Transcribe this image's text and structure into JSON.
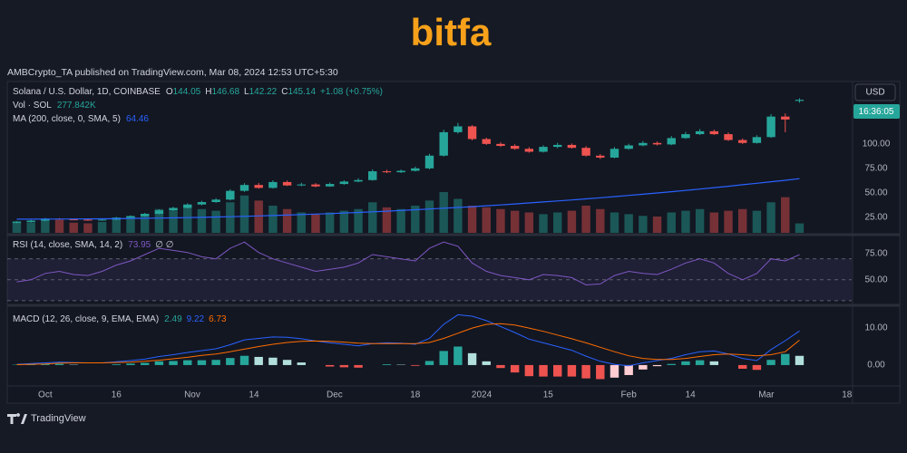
{
  "header": {
    "logo": "bitfa",
    "publisher": "AMBCrypto_TA published on TradingView.com, Mar 08, 2024 12:53 UTC+5:30"
  },
  "footer": {
    "brand": "TradingView"
  },
  "chart_data": [
    {
      "type": "candlestick",
      "title": "Solana / U.S. Dollar, 1D, COINBASE",
      "ohlc_letters": [
        "O",
        "H",
        "L",
        "C"
      ],
      "change_text": "+1.08 (+0.75%)",
      "currency": "USD",
      "countdown": "16:36:05",
      "up_color": "#26a69a",
      "down_color": "#ef5350",
      "grid": false,
      "x": [
        2,
        5,
        8,
        11,
        14,
        17,
        20,
        23,
        26,
        29,
        32,
        35,
        38,
        41,
        44,
        47,
        50,
        53,
        56,
        59,
        62,
        65,
        68,
        71,
        74,
        77,
        80,
        83,
        86,
        89,
        92,
        95,
        98,
        101,
        104,
        107,
        110,
        113,
        116,
        119,
        122,
        125,
        128,
        131,
        134,
        137,
        140,
        143,
        146,
        149,
        152,
        155,
        158,
        161,
        164,
        167
      ],
      "xlim": [
        0,
        178
      ],
      "xticks": [
        {
          "value": 8,
          "label": "Oct"
        },
        {
          "value": 23,
          "label": "16"
        },
        {
          "value": 39,
          "label": "Nov"
        },
        {
          "value": 52,
          "label": "14"
        },
        {
          "value": 69,
          "label": "Dec"
        },
        {
          "value": 86,
          "label": "18"
        },
        {
          "value": 100,
          "label": "2024"
        },
        {
          "value": 114,
          "label": "15"
        },
        {
          "value": 131,
          "label": "Feb"
        },
        {
          "value": 144,
          "label": "14"
        },
        {
          "value": 160,
          "label": "Mar"
        },
        {
          "value": 177,
          "label": "18"
        }
      ],
      "open": [
        19.5,
        20.0,
        21.5,
        23.5,
        22.8,
        22.5,
        21.8,
        22.5,
        24.5,
        26.0,
        28.5,
        32.0,
        34.5,
        38.0,
        40.5,
        43.0,
        52.0,
        58.0,
        55.0,
        61.0,
        57.5,
        58.5,
        56.5,
        59.0,
        61.5,
        63.0,
        72.0,
        71.0,
        72.5,
        75.0,
        88.0,
        112.0,
        118.0,
        105.0,
        100.0,
        98.0,
        95.0,
        92.0,
        97.0,
        99.0,
        96.0,
        88.0,
        86.0,
        95.0,
        98.5,
        101.0,
        99.5,
        106.0,
        110.0,
        113.0,
        110.0,
        104.0,
        101.0,
        107.0,
        128.0,
        144.05
      ],
      "high": [
        20.8,
        22.2,
        24.3,
        24.0,
        23.6,
        23.2,
        23.0,
        25.3,
        26.9,
        29.4,
        33.1,
        35.6,
        39.2,
        41.8,
        44.4,
        53.6,
        59.8,
        60.1,
        62.8,
        62.5,
        60.2,
        59.9,
        60.5,
        62.8,
        64.9,
        73.9,
        73.5,
        73.8,
        76.8,
        89.9,
        114.5,
        121.5,
        119.3,
        106.4,
        101.8,
        99.7,
        96.8,
        98.6,
        101.2,
        100.5,
        97.8,
        89.6,
        96.8,
        100.2,
        102.9,
        102.5,
        108.1,
        112.3,
        115.2,
        114.6,
        111.8,
        105.6,
        108.9,
        130.4,
        131.2,
        146.68
      ],
      "low": [
        19.0,
        19.5,
        21.0,
        22.3,
        22.0,
        21.3,
        21.4,
        22.0,
        24.0,
        25.5,
        28.0,
        31.4,
        34.0,
        37.2,
        39.7,
        42.2,
        51.0,
        54.2,
        54.3,
        57.0,
        56.8,
        55.7,
        56.0,
        58.2,
        60.8,
        62.4,
        70.2,
        70.3,
        71.8,
        74.0,
        87.0,
        110.5,
        103.6,
        99.0,
        96.9,
        94.0,
        91.0,
        91.2,
        95.6,
        95.2,
        87.1,
        84.6,
        85.3,
        94.1,
        97.6,
        98.5,
        98.7,
        105.2,
        109.1,
        109.2,
        103.1,
        100.0,
        100.4,
        106.2,
        112.0,
        142.22
      ],
      "close": [
        20.0,
        21.5,
        23.5,
        22.8,
        22.5,
        21.8,
        22.5,
        24.5,
        26.0,
        28.5,
        32.0,
        34.5,
        38.0,
        40.5,
        43.0,
        52.0,
        58.0,
        55.0,
        61.0,
        57.5,
        58.5,
        56.5,
        59.0,
        61.5,
        63.0,
        72.0,
        71.0,
        72.5,
        75.0,
        88.0,
        112.0,
        118.0,
        105.0,
        100.0,
        98.0,
        95.0,
        92.0,
        97.0,
        99.0,
        96.0,
        88.0,
        86.0,
        95.0,
        98.5,
        101.0,
        99.5,
        106.0,
        110.0,
        113.0,
        110.0,
        104.0,
        101.0,
        107.0,
        128.0,
        125.0,
        145.14
      ],
      "ylim": [
        9,
        162
      ],
      "yticks": [
        {
          "value": 25,
          "label": "25.00"
        },
        {
          "value": 50,
          "label": "50.00"
        },
        {
          "value": 75,
          "label": "75.00"
        },
        {
          "value": 100,
          "label": "100.00"
        }
      ],
      "series": [
        {
          "name": "Vol · SOL",
          "kind": "volume",
          "ylim": [
            0,
            4400
          ],
          "values": [
            350,
            300,
            420,
            380,
            300,
            280,
            320,
            450,
            500,
            560,
            700,
            650,
            750,
            700,
            650,
            900,
            1100,
            950,
            800,
            700,
            600,
            550,
            600,
            650,
            700,
            900,
            750,
            700,
            800,
            950,
            1200,
            1000,
            800,
            750,
            700,
            650,
            600,
            550,
            600,
            650,
            800,
            700,
            600,
            550,
            500,
            480,
            600,
            650,
            700,
            600,
            650,
            700,
            650,
            900,
            1050,
            277.842
          ],
          "value_labels": [
            null,
            null,
            null,
            null,
            null,
            null,
            null,
            null,
            null,
            null,
            null,
            null,
            null,
            null,
            null,
            null,
            null,
            null,
            null,
            null,
            null,
            null,
            null,
            null,
            null,
            null,
            null,
            null,
            null,
            null,
            null,
            null,
            null,
            null,
            null,
            null,
            null,
            null,
            null,
            null,
            null,
            null,
            null,
            null,
            null,
            null,
            null,
            null,
            null,
            null,
            null,
            null,
            null,
            null,
            null,
            "277.842K"
          ]
        },
        {
          "name": "MA (200, close, 0, SMA, 5)",
          "kind": "line",
          "color": "#2962ff",
          "values": [
            23.0,
            23.0,
            23.1,
            23.1,
            23.2,
            23.3,
            23.4,
            23.5,
            23.7,
            23.9,
            24.1,
            24.3,
            24.6,
            24.9,
            25.2,
            25.5,
            25.9,
            26.3,
            26.7,
            27.2,
            27.7,
            28.2,
            28.7,
            29.3,
            29.9,
            30.5,
            31.2,
            31.9,
            32.6,
            33.4,
            34.2,
            35.0,
            35.8,
            36.7,
            37.6,
            38.6,
            39.6,
            40.6,
            41.6,
            42.7,
            43.8,
            44.9,
            46.1,
            47.3,
            48.5,
            49.8,
            51.1,
            52.4,
            53.8,
            55.3,
            56.7,
            58.2,
            59.7,
            61.3,
            62.8,
            64.46
          ]
        }
      ]
    },
    {
      "type": "line",
      "title": "RSI (14, close, SMA, 14, 2)",
      "extra_text": "∅ ∅",
      "ylim": [
        29,
        90.5
      ],
      "yticks": [
        {
          "value": 50,
          "label": "50.00"
        },
        {
          "value": 75,
          "label": "75.00"
        }
      ],
      "bands": [
        30,
        50,
        70
      ],
      "band_color": "#7e57c2",
      "series": [
        {
          "color": "#7e57c2",
          "values": [
            48,
            50,
            56,
            58,
            55,
            54,
            58,
            64,
            68,
            74,
            80,
            78,
            76,
            72,
            70,
            80,
            86,
            76,
            70,
            66,
            62,
            58,
            60,
            62,
            66,
            74,
            72,
            70,
            68,
            80,
            86,
            82,
            66,
            58,
            54,
            52,
            50,
            55,
            54,
            52,
            45,
            46,
            54,
            58,
            56,
            55,
            60,
            66,
            70,
            66,
            56,
            50,
            56,
            70,
            68,
            73.95
          ]
        }
      ]
    },
    {
      "type": "macd",
      "title": "MACD (12, 26, close, 9, EMA, EMA)",
      "ylim": [
        -5.4,
        15.4
      ],
      "yticks": [
        {
          "value": 0,
          "label": "0.00"
        },
        {
          "value": 10,
          "label": "10.00"
        }
      ],
      "histogram_colors": {
        "grow_above": "#26a69a",
        "fall_above": "#b2dfdb",
        "grow_below": "#ef5350",
        "fall_below": "#ffcdd2"
      },
      "series": [
        {
          "kind": "histogram",
          "color": "#26a69a",
          "values": [
            0.1,
            0.2,
            0.3,
            0.3,
            0.1,
            0,
            0,
            0.2,
            0.4,
            0.6,
            1.0,
            1.1,
            1.3,
            1.3,
            1.4,
            1.9,
            2.5,
            2.2,
            2.0,
            1.4,
            0.7,
            0,
            -0.4,
            -0.6,
            -0.7,
            0,
            0.2,
            0.1,
            -0.2,
            1.1,
            3.8,
            5.0,
            3.2,
            1.0,
            -0.8,
            -2.0,
            -3.0,
            -3.1,
            -3.1,
            -3.1,
            -3.6,
            -3.8,
            -3.4,
            -2.7,
            -1.2,
            -0.3,
            0.3,
            1.0,
            1.3,
            1.0,
            0,
            -1.0,
            -1.3,
            1.4,
            3.0,
            2.49
          ]
        },
        {
          "kind": "line",
          "color": "#2962ff",
          "values": [
            0.2,
            0.4,
            0.6,
            0.8,
            0.7,
            0.6,
            0.6,
            0.9,
            1.2,
            1.6,
            2.3,
            2.8,
            3.4,
            3.9,
            4.4,
            5.5,
            6.8,
            7.2,
            7.6,
            7.5,
            7.1,
            6.5,
            6.0,
            5.6,
            5.2,
            5.8,
            6.0,
            5.9,
            5.6,
            7.2,
            11.0,
            13.6,
            13.2,
            12.0,
            10.4,
            8.8,
            7.0,
            6.0,
            5.0,
            4.0,
            2.4,
            1.0,
            0.2,
            -0.2,
            0.6,
            1.2,
            1.8,
            2.8,
            3.6,
            3.8,
            3.0,
            1.8,
            1.2,
            4.2,
            6.6,
            9.22
          ]
        },
        {
          "kind": "line",
          "color": "#ff6d00",
          "values": [
            0.1,
            0.2,
            0.3,
            0.5,
            0.6,
            0.6,
            0.6,
            0.7,
            0.8,
            1.0,
            1.3,
            1.7,
            2.1,
            2.6,
            3.0,
            3.6,
            4.3,
            5.0,
            5.6,
            6.1,
            6.4,
            6.5,
            6.4,
            6.2,
            5.9,
            5.8,
            5.8,
            5.8,
            5.8,
            6.1,
            7.2,
            8.6,
            10.0,
            11.0,
            11.2,
            10.8,
            10.0,
            9.1,
            8.1,
            7.1,
            6.0,
            4.8,
            3.6,
            2.5,
            1.8,
            1.5,
            1.5,
            1.8,
            2.3,
            2.8,
            3.0,
            2.8,
            2.5,
            2.8,
            3.6,
            6.73
          ]
        }
      ]
    }
  ]
}
